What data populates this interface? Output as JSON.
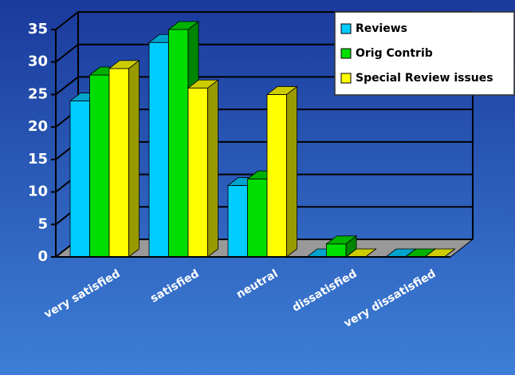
{
  "chart_data": {
    "type": "bar",
    "categories": [
      "very satisfied",
      "satisfied",
      "neutral",
      "dissatisfied",
      "very dissatisfied"
    ],
    "series": [
      {
        "name": "Reviews",
        "color": "#00ccff",
        "values": [
          24,
          33,
          11,
          0,
          0
        ]
      },
      {
        "name": "Orig Contrib",
        "color": "#00dd00",
        "values": [
          28,
          35,
          12,
          2,
          0
        ]
      },
      {
        "name": "Special Review issues",
        "color": "#ffff00",
        "values": [
          29,
          26,
          25,
          0,
          0
        ]
      }
    ],
    "ylim": [
      0,
      35
    ],
    "yticks": [
      0,
      5,
      10,
      15,
      20,
      25,
      30,
      35
    ],
    "grid": true,
    "legend": "top-right"
  }
}
